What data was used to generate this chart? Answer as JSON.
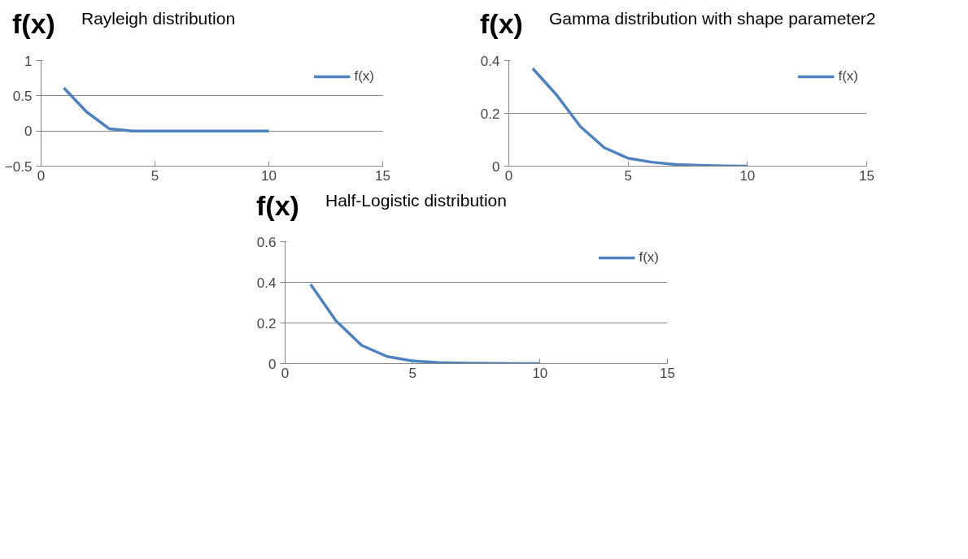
{
  "chart_data": [
    {
      "type": "line",
      "title": "Rayleigh distribution",
      "ylabel": "f(x)",
      "x": [
        1,
        2,
        3,
        4,
        5,
        6,
        7,
        8,
        9,
        10
      ],
      "series": [
        {
          "name": "f(x)",
          "color": "#4f81bd",
          "values": [
            0.61,
            0.27,
            0.03,
            0,
            0,
            0,
            0,
            0,
            0,
            0
          ]
        }
      ],
      "xlim": [
        0,
        15
      ],
      "xticks": [
        0,
        5,
        10,
        15
      ],
      "ylim": [
        -0.5,
        1
      ],
      "yticks": [
        -0.5,
        0,
        0.5,
        1
      ],
      "grid": "y",
      "legend": "top right",
      "line_style": "solid"
    },
    {
      "type": "line",
      "title": "Gamma distribution with shape parameter2",
      "ylabel": "f(x)",
      "x": [
        1,
        2,
        3,
        4,
        5,
        6,
        7,
        8,
        9,
        10
      ],
      "series": [
        {
          "name": "f(x)",
          "color": "#4f81bd",
          "values": [
            0.37,
            0.27,
            0.15,
            0.07,
            0.03,
            0.015,
            0.006,
            0.003,
            0.001,
            0
          ]
        }
      ],
      "xlim": [
        0,
        15
      ],
      "xticks": [
        0,
        5,
        10,
        15
      ],
      "ylim": [
        0,
        0.4
      ],
      "yticks": [
        0,
        0.2,
        0.4
      ],
      "grid": "y",
      "legend": "top right",
      "line_style": "solid"
    },
    {
      "type": "line",
      "title": "Half-Logistic distribution",
      "ylabel": "f(x)",
      "x": [
        1,
        2,
        3,
        4,
        5,
        6,
        7,
        8,
        9,
        10
      ],
      "series": [
        {
          "name": "f(x)",
          "color": "#4f81bd",
          "values": [
            0.39,
            0.21,
            0.09,
            0.035,
            0.013,
            0.005,
            0.002,
            0.001,
            0,
            0
          ]
        }
      ],
      "xlim": [
        0,
        15
      ],
      "xticks": [
        0,
        5,
        10,
        15
      ],
      "ylim": [
        0,
        0.6
      ],
      "yticks": [
        0,
        0.2,
        0.4,
        0.6
      ],
      "grid": "y",
      "legend": "top right",
      "line_style": "solid"
    }
  ]
}
